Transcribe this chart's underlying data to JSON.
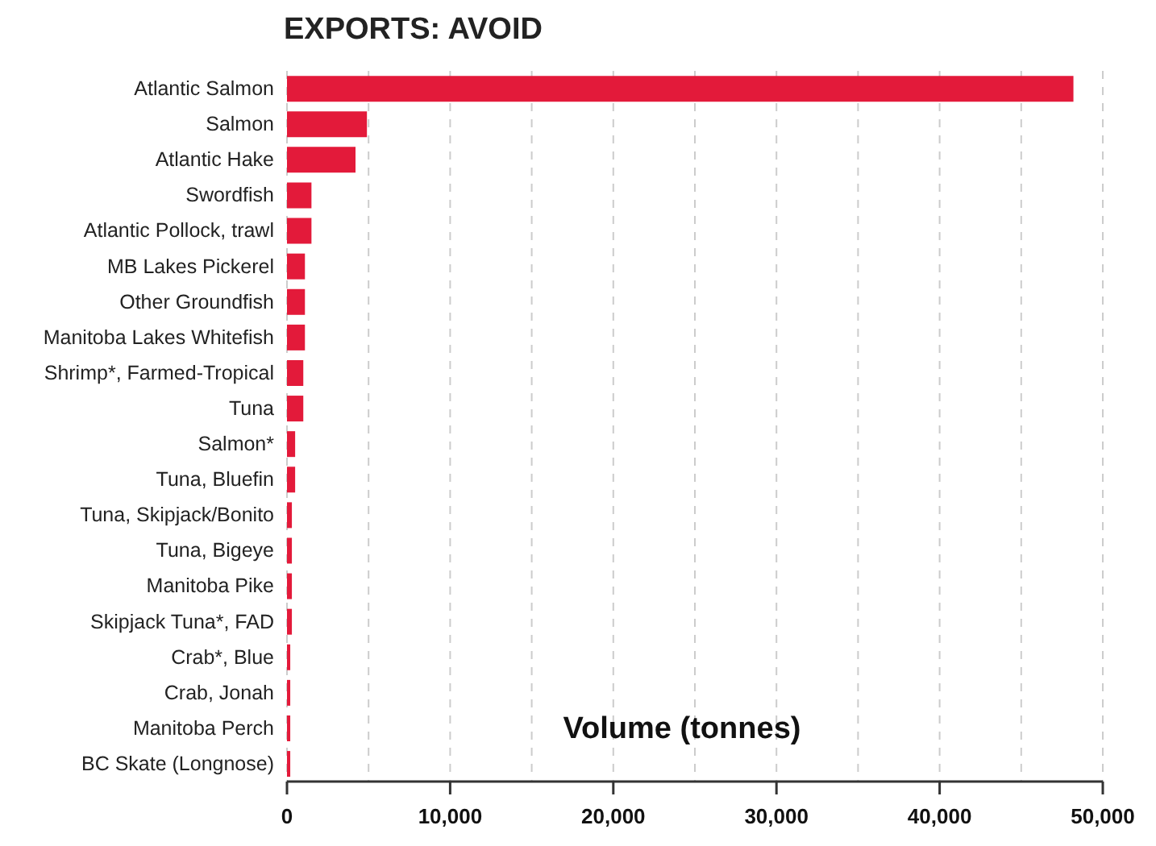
{
  "chart_data": {
    "type": "bar",
    "orientation": "horizontal",
    "title": "EXPORTS: AVOID",
    "xlabel": "Volume (tonnes)",
    "categories": [
      "Atlantic Salmon",
      "Salmon",
      "Atlantic Hake",
      "Swordfish",
      "Atlantic Pollock, trawl",
      "MB Lakes Pickerel",
      "Other Groundfish",
      "Manitoba Lakes Whitefish",
      "Shrimp*, Farmed-Tropical",
      "Tuna",
      "Salmon*",
      "Tuna, Bluefin",
      "Tuna, Skipjack/Bonito",
      "Tuna, Bigeye",
      "Manitoba Pike",
      "Skipjack Tuna*, FAD",
      "Crab*, Blue",
      "Crab, Jonah",
      "Manitoba Perch",
      "BC Skate (Longnose)"
    ],
    "values": [
      48200,
      4900,
      4200,
      1500,
      1500,
      1100,
      1100,
      1100,
      1000,
      1000,
      500,
      500,
      300,
      300,
      300,
      300,
      200,
      200,
      200,
      200
    ],
    "color": "#e31a3a",
    "xlim": [
      0,
      50000
    ],
    "xticks": [
      0,
      {
        "value": 5000,
        "label": null
      },
      {
        "value": 10000,
        "label": "10,000"
      },
      {
        "value": 15000,
        "label": null
      },
      {
        "value": 20000,
        "label": "20,000"
      },
      {
        "value": 25000,
        "label": null
      },
      {
        "value": 30000,
        "label": "30,000"
      },
      {
        "value": 35000,
        "label": null
      },
      {
        "value": 40000,
        "label": "40,000"
      },
      {
        "value": 45000,
        "label": null
      },
      {
        "value": 50000,
        "label": "50,000"
      }
    ],
    "grid": "x"
  }
}
